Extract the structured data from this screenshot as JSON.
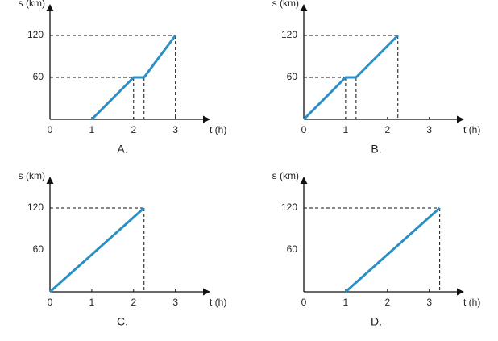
{
  "chart_data": [
    {
      "type": "line",
      "caption": "A.",
      "x_label": "t (h)",
      "y_label": "s (km)",
      "x": [
        1,
        2,
        2.25,
        3
      ],
      "values": [
        0,
        60,
        60,
        120
      ],
      "color": "#2b8fc6",
      "xlim": [
        0,
        3.7
      ],
      "ylim": [
        0,
        150
      ],
      "xticks": [
        0,
        1,
        2,
        3
      ],
      "yticks": [
        60,
        120
      ]
    },
    {
      "type": "line",
      "caption": "B.",
      "x_label": "t (h)",
      "y_label": "s (km)",
      "x": [
        0,
        1,
        1.25,
        2.25
      ],
      "values": [
        0,
        60,
        60,
        120
      ],
      "color": "#2b8fc6",
      "xlim": [
        0,
        3.7
      ],
      "ylim": [
        0,
        150
      ],
      "xticks": [
        0,
        1,
        2,
        3
      ],
      "yticks": [
        60,
        120
      ]
    },
    {
      "type": "line",
      "caption": "C.",
      "x_label": "t (h)",
      "y_label": "s (km)",
      "x": [
        0,
        2.25
      ],
      "values": [
        0,
        120
      ],
      "color": "#2b8fc6",
      "xlim": [
        0,
        3.7
      ],
      "ylim": [
        0,
        150
      ],
      "xticks": [
        0,
        1,
        2,
        3
      ],
      "yticks": [
        60,
        120
      ]
    },
    {
      "type": "line",
      "caption": "D.",
      "x_label": "t (h)",
      "y_label": "s (km)",
      "x": [
        1,
        3.25
      ],
      "values": [
        0,
        120
      ],
      "color": "#2b8fc6",
      "xlim": [
        0,
        3.7
      ],
      "ylim": [
        0,
        150
      ],
      "xticks": [
        0,
        1,
        2,
        3
      ],
      "yticks": [
        60,
        120
      ]
    }
  ]
}
